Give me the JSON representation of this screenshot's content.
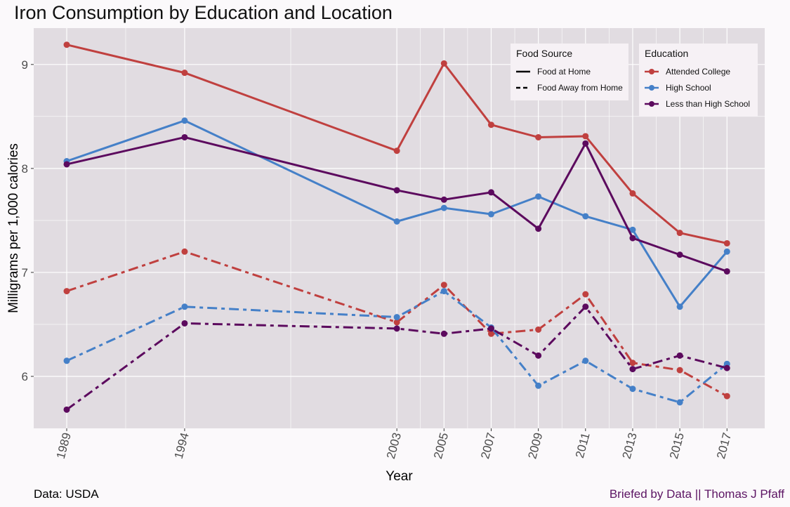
{
  "title": "Iron Consumption by Education and Location",
  "footer_left": "Data: USDA",
  "footer_right": "Briefed by Data || Thomas J Pfaff",
  "legend_food": {
    "title": "Food Source",
    "items": [
      {
        "label": "Food at Home",
        "style": "solid"
      },
      {
        "label": "Food Away from Home",
        "style": "dashed"
      }
    ]
  },
  "legend_edu": {
    "title": "Education",
    "items": [
      {
        "label": "Attended College",
        "color": "#c0403f"
      },
      {
        "label": "High School",
        "color": "#4580c8"
      },
      {
        "label": "Less than High School",
        "color": "#5c0a5e"
      }
    ]
  },
  "chart_data": {
    "type": "line",
    "title": "Iron Consumption by Education and Location",
    "xlabel": "Year",
    "ylabel": "Milligrams per 1,000 calories",
    "x": [
      1989,
      1994,
      2003,
      2005,
      2007,
      2009,
      2011,
      2013,
      2015,
      2017
    ],
    "x_ticks": [
      "1989",
      "1994",
      "2003",
      "2005",
      "2007",
      "2009",
      "2011",
      "2013",
      "2015",
      "2017"
    ],
    "y_ticks": [
      "6",
      "7",
      "8",
      "9"
    ],
    "xlim": [
      1987.6,
      2018.6
    ],
    "ylim": [
      5.5,
      9.35
    ],
    "grid": true,
    "legend_position": "top-right",
    "colors": {
      "panel": "#e1dce1",
      "grid": "#ffffff"
    },
    "series": [
      {
        "name": "Attended College",
        "source": "Food at Home",
        "color": "#c0403f",
        "dash": "solid",
        "values": [
          9.19,
          8.92,
          8.17,
          9.01,
          8.42,
          8.3,
          8.31,
          7.76,
          7.38,
          7.28
        ]
      },
      {
        "name": "High School",
        "source": "Food at Home",
        "color": "#4580c8",
        "dash": "solid",
        "values": [
          8.07,
          8.46,
          7.49,
          7.62,
          7.56,
          7.73,
          7.54,
          7.41,
          6.67,
          7.2
        ]
      },
      {
        "name": "Less than High School",
        "source": "Food at Home",
        "color": "#5c0a5e",
        "dash": "solid",
        "values": [
          8.04,
          8.3,
          7.79,
          7.7,
          7.77,
          7.42,
          8.24,
          7.33,
          7.17,
          7.01
        ]
      },
      {
        "name": "Attended College",
        "source": "Food Away from Home",
        "color": "#c0403f",
        "dash": "dashed",
        "values": [
          6.82,
          7.2,
          6.52,
          6.88,
          6.41,
          6.45,
          6.79,
          6.13,
          6.06,
          5.81
        ]
      },
      {
        "name": "High School",
        "source": "Food Away from Home",
        "color": "#4580c8",
        "dash": "dashed",
        "values": [
          6.15,
          6.67,
          6.57,
          6.82,
          6.47,
          5.91,
          6.15,
          5.88,
          5.75,
          6.12
        ]
      },
      {
        "name": "Less than High School",
        "source": "Food Away from Home",
        "color": "#5c0a5e",
        "dash": "dashed",
        "values": [
          5.68,
          6.51,
          6.46,
          6.41,
          6.46,
          6.2,
          6.67,
          6.07,
          6.2,
          6.08
        ]
      }
    ]
  }
}
